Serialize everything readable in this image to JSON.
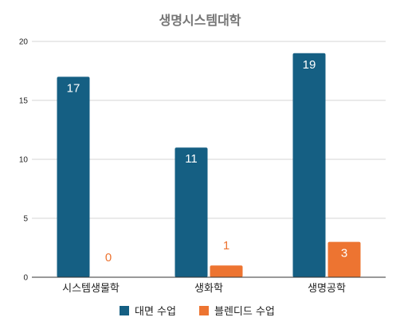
{
  "chart_data": {
    "type": "bar",
    "title": "생명시스템대학",
    "categories": [
      "시스템생물학",
      "생화학",
      "생명공학"
    ],
    "series": [
      {
        "name": "대면 수업",
        "values": [
          17,
          11,
          19
        ],
        "color": "#155f83"
      },
      {
        "name": "블렌디드 수업",
        "values": [
          0,
          1,
          3
        ],
        "color": "#ed7431"
      }
    ],
    "ylim": [
      0,
      20
    ],
    "yticks": [
      0,
      5,
      10,
      15,
      20
    ],
    "grid": true,
    "legend_position": "bottom",
    "data_label_colors": {
      "on_bar": "#ffffff",
      "above_bar": "#ed7431",
      "on_small_bar": "#222222"
    }
  }
}
